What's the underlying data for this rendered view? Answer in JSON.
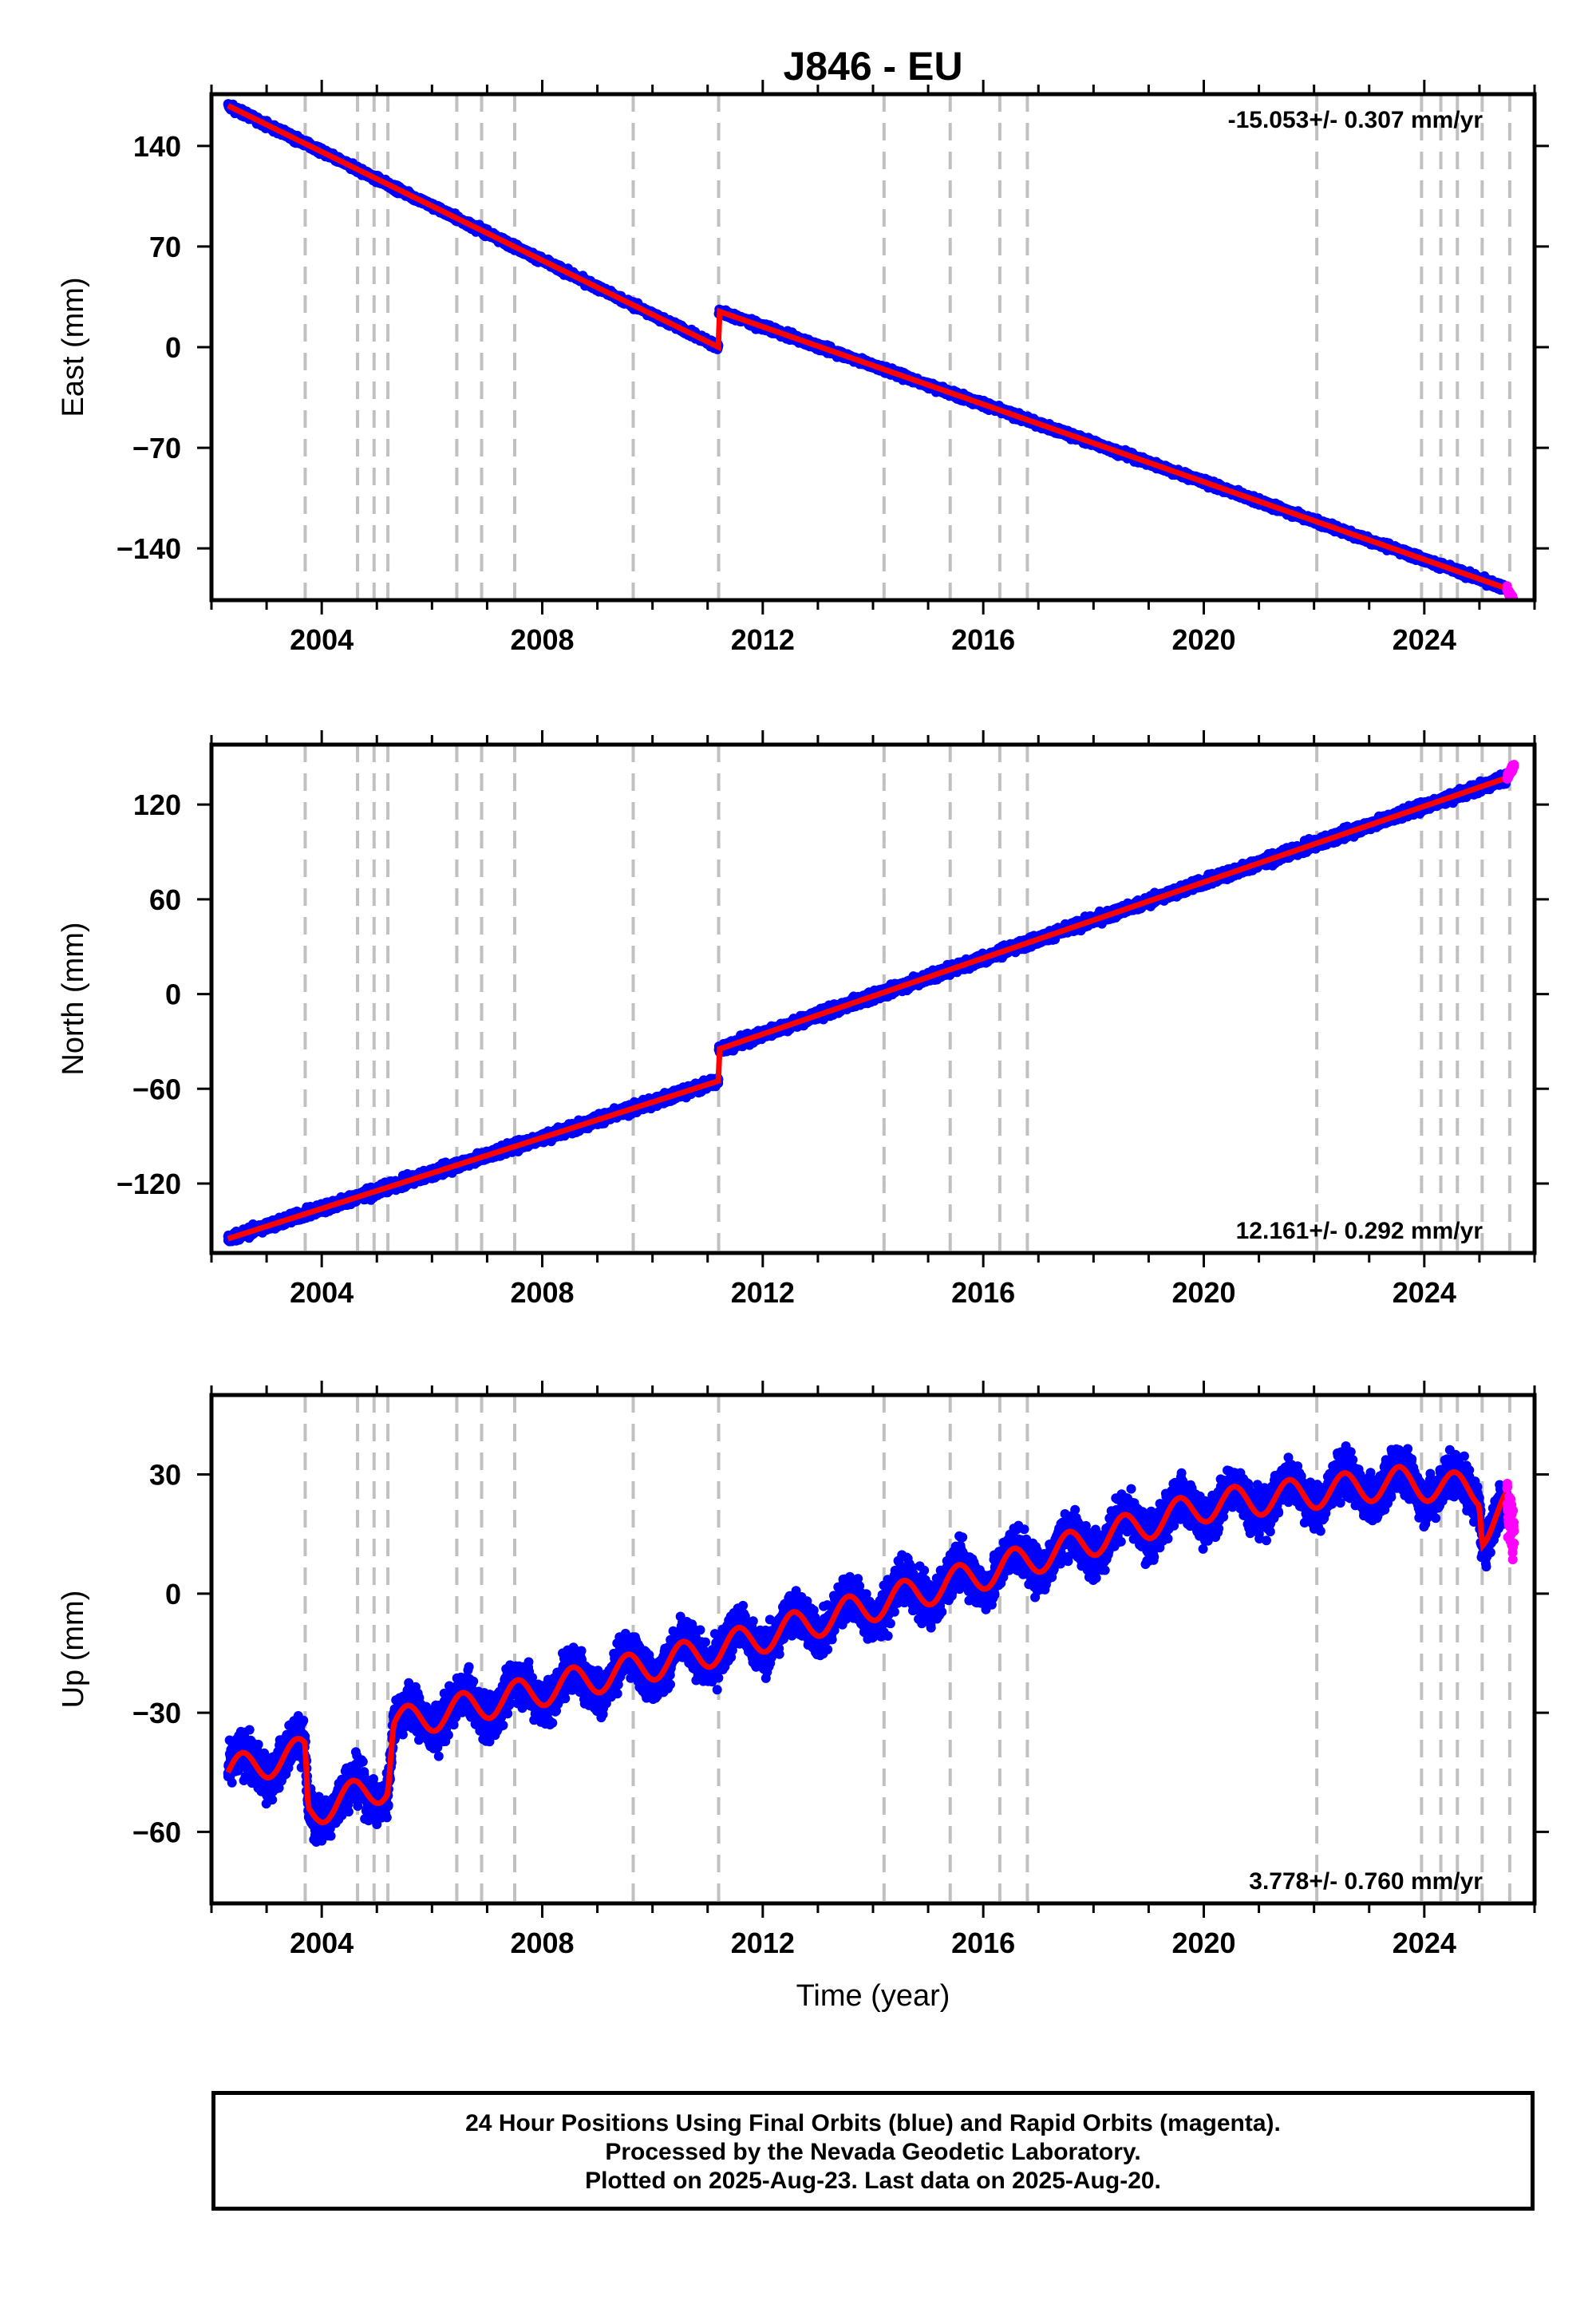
{
  "chart_data": [
    {
      "type": "scatter",
      "panel": "east",
      "title": "J846 - EU",
      "ylabel": "East (mm)",
      "xlabel": "",
      "rate_label": "-15.053+/- 0.307 mm/yr",
      "rate_position": "top-right",
      "xlim": [
        2002.0,
        2026.0
      ],
      "ylim": [
        -176,
        176
      ],
      "y_ticks": [
        140,
        70,
        0,
        -70,
        -140
      ],
      "y_tick_labels": [
        "140",
        "70",
        "0",
        "−70",
        "−140"
      ],
      "x_ticks": [
        2004,
        2008,
        2012,
        2016,
        2020,
        2024
      ],
      "x_tick_labels": [
        "2004",
        "2008",
        "2012",
        "2016",
        "2020",
        "2024"
      ],
      "series": [
        {
          "color": "#0000ff",
          "style": "dots",
          "x_range": [
            2002.3,
            2025.5
          ],
          "trend": [
            [
              2002.3,
              168
            ],
            [
              2011.2,
              0
            ],
            [
              2011.2,
              25
            ],
            [
              2025.5,
              -168
            ]
          ],
          "scatter_mm": 3
        },
        {
          "color": "#ff0000",
          "style": "line",
          "x_range": [
            2002.3,
            2025.5
          ],
          "trend": [
            [
              2002.3,
              168
            ],
            [
              2011.2,
              0
            ],
            [
              2011.2,
              25
            ],
            [
              2025.5,
              -168
            ]
          ]
        },
        {
          "color": "#ff00ff",
          "style": "dots",
          "x_range": [
            2025.5,
            2025.63
          ],
          "trend": [
            [
              2025.5,
              -168
            ],
            [
              2025.63,
              -178
            ]
          ]
        }
      ]
    },
    {
      "type": "scatter",
      "panel": "north",
      "ylabel": "North (mm)",
      "xlabel": "",
      "rate_label": "12.161+/- 0.292 mm/yr",
      "rate_position": "bottom-right",
      "xlim": [
        2002.0,
        2026.0
      ],
      "ylim": [
        -164,
        158
      ],
      "y_ticks": [
        120,
        60,
        0,
        -60,
        -120
      ],
      "y_tick_labels": [
        "120",
        "60",
        "0",
        "−60",
        "−120"
      ],
      "x_ticks": [
        2004,
        2008,
        2012,
        2016,
        2020,
        2024
      ],
      "x_tick_labels": [
        "2004",
        "2008",
        "2012",
        "2016",
        "2020",
        "2024"
      ],
      "series": [
        {
          "color": "#0000ff",
          "style": "dots",
          "x_range": [
            2002.3,
            2025.5
          ],
          "trend": [
            [
              2002.3,
              -155
            ],
            [
              2011.2,
              -55
            ],
            [
              2011.2,
              -35
            ],
            [
              2025.5,
              137
            ]
          ],
          "scatter_mm": 4
        },
        {
          "color": "#ff0000",
          "style": "line",
          "x_range": [
            2002.3,
            2025.5
          ],
          "trend": [
            [
              2002.3,
              -155
            ],
            [
              2011.2,
              -55
            ],
            [
              2011.2,
              -35
            ],
            [
              2025.5,
              137
            ]
          ]
        },
        {
          "color": "#ff00ff",
          "style": "dots",
          "x_range": [
            2025.5,
            2025.63
          ],
          "trend": [
            [
              2025.5,
              137
            ],
            [
              2025.63,
              145
            ]
          ]
        }
      ]
    },
    {
      "type": "scatter",
      "panel": "up",
      "ylabel": "Up (mm)",
      "xlabel": "Time (year)",
      "rate_label": "3.778+/- 0.760 mm/yr",
      "rate_position": "bottom-right",
      "xlim": [
        2002.0,
        2026.0
      ],
      "ylim": [
        -78,
        50
      ],
      "y_ticks": [
        30,
        0,
        -30,
        -60
      ],
      "y_tick_labels": [
        "30",
        "0",
        "−30",
        "−60"
      ],
      "x_ticks": [
        2004,
        2008,
        2012,
        2016,
        2020,
        2024
      ],
      "x_tick_labels": [
        "2004",
        "2008",
        "2012",
        "2016",
        "2020",
        "2024"
      ],
      "series": [
        {
          "color": "#0000ff",
          "style": "dots",
          "x_range": [
            2002.3,
            2025.5
          ],
          "trend": [
            [
              2002.3,
              -45
            ],
            [
              2003.7,
              -40
            ],
            [
              2003.75,
              -55
            ],
            [
              2005.2,
              -48
            ],
            [
              2005.3,
              -33
            ],
            [
              2011.2,
              -14
            ],
            [
              2016,
              5
            ],
            [
              2020,
              22
            ],
            [
              2023.5,
              28
            ],
            [
              2025.0,
              26
            ],
            [
              2025.05,
              16
            ],
            [
              2025.5,
              22
            ]
          ],
          "seasonal_amp_mm": 4,
          "scatter_mm": 7
        },
        {
          "color": "#ff0000",
          "style": "line",
          "x_range": [
            2002.3,
            2025.5
          ],
          "trend": [
            [
              2002.3,
              -45
            ],
            [
              2003.7,
              -40
            ],
            [
              2003.75,
              -55
            ],
            [
              2005.2,
              -48
            ],
            [
              2005.3,
              -33
            ],
            [
              2011.2,
              -14
            ],
            [
              2016,
              5
            ],
            [
              2020,
              22
            ],
            [
              2023.5,
              28
            ],
            [
              2025.0,
              26
            ],
            [
              2025.05,
              16
            ],
            [
              2025.5,
              22
            ]
          ],
          "seasonal_amp_mm": 4
        },
        {
          "color": "#ff00ff",
          "style": "dots",
          "x_range": [
            2025.5,
            2025.63
          ],
          "trend": [
            [
              2025.5,
              22
            ],
            [
              2025.63,
              15
            ]
          ],
          "scatter_mm": 12
        }
      ]
    }
  ],
  "event_lines_x": [
    2003.7,
    2004.65,
    2004.95,
    2005.2,
    2006.45,
    2006.9,
    2007.5,
    2009.65,
    2011.2,
    2014.2,
    2015.4,
    2016.3,
    2016.8,
    2022.05,
    2023.95,
    2024.3,
    2024.6,
    2025.05,
    2025.55
  ],
  "footer": {
    "line1": "24 Hour Positions Using Final Orbits (blue) and Rapid Orbits (magenta).",
    "line2": "Processed by the Nevada Geodetic Laboratory.",
    "line3": "Plotted on 2025-Aug-23. Last data on 2025-Aug-20."
  }
}
